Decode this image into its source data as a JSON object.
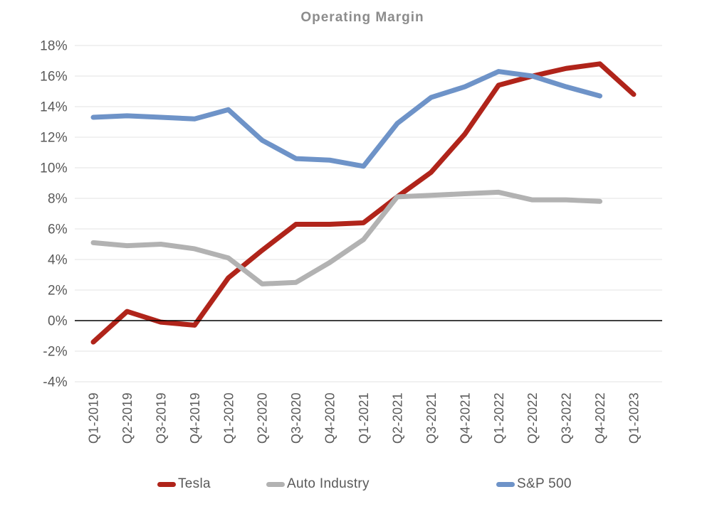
{
  "chart_data": {
    "type": "line",
    "title": "Operating Margin",
    "categories": [
      "Q1-2019",
      "Q2-2019",
      "Q3-2019",
      "Q4-2019",
      "Q1-2020",
      "Q2-2020",
      "Q3-2020",
      "Q4-2020",
      "Q1-2021",
      "Q2-2021",
      "Q3-2021",
      "Q4-2021",
      "Q1-2022",
      "Q2-2022",
      "Q3-2022",
      "Q4-2022",
      "Q1-2023"
    ],
    "series": [
      {
        "name": "Tesla",
        "color": "#b0241a",
        "values": [
          -1.4,
          0.6,
          -0.1,
          -0.3,
          2.8,
          4.6,
          6.3,
          6.3,
          6.4,
          8.1,
          9.7,
          12.2,
          15.4,
          16.0,
          16.5,
          16.8,
          14.8
        ]
      },
      {
        "name": "Auto Industry",
        "color": "#b2b2b2",
        "values": [
          5.1,
          4.9,
          5.0,
          4.7,
          4.1,
          2.4,
          2.5,
          3.8,
          5.3,
          8.1,
          8.2,
          8.3,
          8.4,
          7.9,
          7.9,
          7.8
        ]
      },
      {
        "name": "S&P 500",
        "color": "#6e93c8",
        "values": [
          13.3,
          13.4,
          13.3,
          13.2,
          13.8,
          11.8,
          10.6,
          10.5,
          10.1,
          12.9,
          14.6,
          15.3,
          16.3,
          16.0,
          15.3,
          14.7
        ]
      }
    ],
    "y_tick_values": [
      18,
      16,
      14,
      12,
      10,
      8,
      6,
      4,
      2,
      0,
      -2,
      -4
    ],
    "y_tick_labels": [
      "18%",
      "16%",
      "14%",
      "12%",
      "10%",
      "8%",
      "6%",
      "4%",
      "2%",
      "0%",
      "-2%",
      "-4%"
    ],
    "ylim": [
      -4,
      18
    ],
    "grid": true,
    "legend_position": "bottom",
    "axis_unit": "percent"
  },
  "colors": {
    "gridline": "#e3e3e3",
    "zero_line": "#000000",
    "axis_text": "#595959",
    "title_text": "#8c8c8c"
  }
}
